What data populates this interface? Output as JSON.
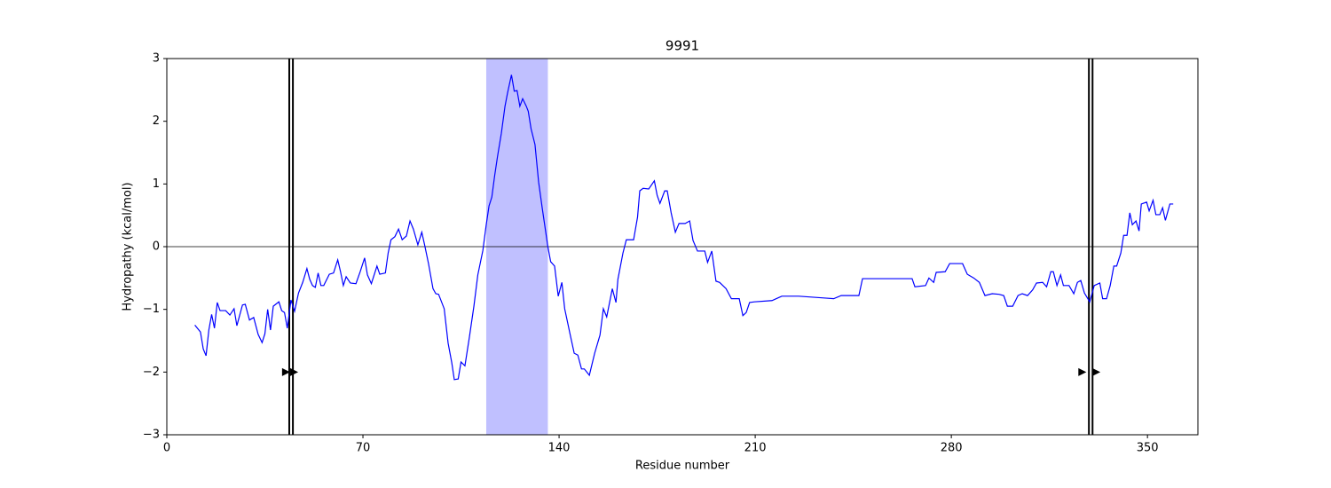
{
  "chart_data": {
    "type": "line",
    "title": "9991",
    "x_label": "Residue number",
    "y_label": "Hydropathy (kcal/mol)",
    "x": [
      10,
      12,
      13,
      14,
      15,
      16,
      17,
      18,
      19,
      21,
      22.5,
      24,
      25,
      27,
      28,
      29.5,
      31,
      32.6,
      34,
      35,
      36,
      37,
      38,
      40,
      41,
      42,
      43,
      44.3,
      45.6,
      47,
      48.5,
      50,
      51,
      52,
      53,
      54,
      55,
      56,
      58,
      59.5,
      61,
      62,
      63,
      64,
      65.5,
      67.5,
      69,
      70.6,
      71.6,
      73,
      75,
      76,
      78,
      79,
      80,
      81.4,
      82.7,
      84,
      85.5,
      86.8,
      88,
      89.6,
      91,
      92,
      93.4,
      95,
      96,
      97,
      99,
      100.4,
      101.7,
      102.6,
      104,
      105,
      106.4,
      108,
      109.6,
      111,
      112.8,
      114,
      115,
      116,
      117,
      118,
      119.4,
      120.7,
      121.6,
      123,
      124,
      125,
      126,
      127,
      128.3,
      129,
      130,
      131.4,
      132.7,
      134,
      136,
      137,
      138.4,
      139.7,
      141,
      142,
      143.8,
      145.4,
      146.7,
      148,
      149,
      150.8,
      152.7,
      154.6,
      155.8,
      157,
      159,
      160.3,
      161,
      162.8,
      164,
      166.6,
      168,
      168.8,
      170,
      172,
      174,
      175,
      176,
      177.7,
      178.6,
      180,
      181.5,
      182.8,
      185,
      186.6,
      187.8,
      189.4,
      192,
      193,
      194.5,
      196,
      197.3,
      199.6,
      201.5,
      204.3,
      205.6,
      206.8,
      208,
      209.7,
      216,
      218,
      219.5,
      225.5,
      235,
      238,
      240.7,
      247,
      248.3,
      257,
      266,
      267,
      270.8,
      272,
      273.7,
      274.6,
      277.8,
      279.4,
      284,
      285.7,
      288,
      290,
      292,
      294.6,
      297,
      298.7,
      300,
      301.9,
      303.8,
      305.3,
      307.2,
      309,
      310.4,
      312.6,
      314,
      315.5,
      316.4,
      317.7,
      319,
      320,
      322,
      323.7,
      325,
      326.2,
      327.5,
      329.4,
      331,
      333,
      334,
      335.4,
      336.7,
      338,
      339,
      340.5,
      341.5,
      342.7,
      343.7,
      344.6,
      345.9,
      347,
      347.8,
      349.7,
      350.6,
      352,
      353,
      354.4,
      355.4,
      356.4,
      358,
      359.2
    ],
    "series": [
      {
        "color": "#0000ff",
        "values": [
          -1.25,
          -1.36,
          -1.63,
          -1.74,
          -1.33,
          -1.08,
          -1.3,
          -0.89,
          -1.02,
          -1.02,
          -1.09,
          -0.99,
          -1.26,
          -0.93,
          -0.92,
          -1.17,
          -1.13,
          -1.4,
          -1.53,
          -1.39,
          -1.0,
          -1.33,
          -0.95,
          -0.88,
          -1.02,
          -1.05,
          -1.3,
          -0.85,
          -1.03,
          -0.74,
          -0.57,
          -0.35,
          -0.52,
          -0.62,
          -0.65,
          -0.42,
          -0.62,
          -0.62,
          -0.44,
          -0.42,
          -0.21,
          -0.4,
          -0.62,
          -0.48,
          -0.58,
          -0.59,
          -0.4,
          -0.18,
          -0.45,
          -0.59,
          -0.31,
          -0.44,
          -0.42,
          -0.1,
          0.11,
          0.16,
          0.28,
          0.11,
          0.17,
          0.41,
          0.28,
          0.03,
          0.23,
          0.03,
          -0.27,
          -0.67,
          -0.75,
          -0.76,
          -0.99,
          -1.54,
          -1.85,
          -2.12,
          -2.11,
          -1.84,
          -1.9,
          -1.44,
          -0.95,
          -0.45,
          -0.06,
          0.35,
          0.65,
          0.79,
          1.13,
          1.43,
          1.81,
          2.24,
          2.45,
          2.74,
          2.48,
          2.49,
          2.24,
          2.36,
          2.24,
          2.16,
          1.88,
          1.63,
          1.03,
          0.61,
          0,
          -0.24,
          -0.31,
          -0.79,
          -0.57,
          -0.99,
          -1.37,
          -1.7,
          -1.73,
          -1.95,
          -1.95,
          -2.05,
          -1.7,
          -1.41,
          -0.99,
          -1.12,
          -0.67,
          -0.89,
          -0.52,
          -0.1,
          0.11,
          0.11,
          0.47,
          0.89,
          0.93,
          0.92,
          1.05,
          0.82,
          0.69,
          0.89,
          0.89,
          0.54,
          0.23,
          0.37,
          0.37,
          0.41,
          0.1,
          -0.07,
          -0.07,
          -0.25,
          -0.07,
          -0.55,
          -0.57,
          -0.67,
          -0.83,
          -0.83,
          -1.1,
          -1.05,
          -0.89,
          -0.88,
          -0.86,
          -0.82,
          -0.79,
          -0.79,
          -0.82,
          -0.83,
          -0.78,
          -0.78,
          -0.51,
          -0.51,
          -0.51,
          -0.64,
          -0.62,
          -0.5,
          -0.57,
          -0.41,
          -0.4,
          -0.27,
          -0.27,
          -0.44,
          -0.5,
          -0.57,
          -0.78,
          -0.75,
          -0.76,
          -0.78,
          -0.95,
          -0.95,
          -0.78,
          -0.75,
          -0.78,
          -0.69,
          -0.58,
          -0.57,
          -0.64,
          -0.4,
          -0.4,
          -0.62,
          -0.45,
          -0.62,
          -0.62,
          -0.75,
          -0.57,
          -0.54,
          -0.74,
          -0.88,
          -0.62,
          -0.58,
          -0.83,
          -0.83,
          -0.62,
          -0.31,
          -0.31,
          -0.1,
          0.18,
          0.18,
          0.54,
          0.35,
          0.41,
          0.25,
          0.68,
          0.71,
          0.57,
          0.74,
          0.51,
          0.51,
          0.62,
          0.42,
          0.68,
          0.68
        ]
      }
    ],
    "xlim": [
      0,
      368
    ],
    "ylim": [
      -3,
      3
    ],
    "xticks": [
      0,
      70,
      140,
      210,
      280,
      350
    ],
    "yticks": [
      {
        "value": -3,
        "label": "−3"
      },
      {
        "value": -2,
        "label": "−2"
      },
      {
        "value": -1,
        "label": "−1"
      },
      0,
      1,
      2,
      3
    ],
    "hline": 0,
    "spans": [
      {
        "x": [
          114,
          136
        ],
        "color": "#c0c0ff"
      }
    ],
    "vlines": [
      43.7,
      45,
      329.1,
      330.4
    ],
    "markers": [
      {
        "x": 42.4,
        "y": -2
      },
      {
        "x": 45.3,
        "y": -2
      },
      {
        "x": 326.6,
        "y": -2
      },
      {
        "x": 331.6,
        "y": -2
      }
    ]
  }
}
